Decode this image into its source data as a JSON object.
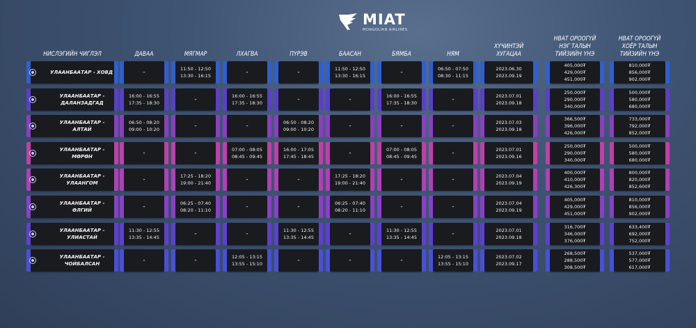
{
  "logo": {
    "name": "MIAT",
    "subtitle": "MONGOLIAN AIRLINES"
  },
  "headers": [
    "НИСЛЭГИЙН ЧИГЛЭЛ",
    "ДАВАА",
    "МЯГМАР",
    "ЛХАГВА",
    "ПҮРЭВ",
    "БААСАН",
    "БЯМБА",
    "НЯМ",
    "ХҮЧИНТЭЙ\nХУГАЦАА",
    "НВАТ ОРООГҮЙ\nНЭГ ТАЛЫН\nТИЙЗИЙН ҮНЭ",
    "НВАТ ОРООГҮЙ\nХОЁР ТАЛЫН\nТИЙЗИЙН ҮНЭ"
  ],
  "rows": [
    {
      "route": "УЛААНБААТАР - ХОВД",
      "accent": "#2f5fd0",
      "cells": [
        "-",
        "11:50 - 12:50\n13:30 - 16:15",
        "-",
        "-",
        "11:50 - 12:50\n13:30 - 16:15",
        "-",
        "06:50 - 07:50\n08:30 - 11:15",
        "2023.06.30\n2023.09.19",
        "405,000₮\n429,000₮\n451,000₮",
        "810,000₮\n856,000₮\n902,000₮"
      ]
    },
    {
      "route": "УЛААНБААТАР - ДАЛАНЗАДГАД",
      "accent": "#5a3fc8",
      "cells": [
        "16:00 - 16:55\n17:35 - 18:30",
        "-",
        "16:00 - 16:55\n17:35 - 18:30",
        "-",
        "-",
        "16:00 - 16:55\n17:35 - 18:30",
        "-",
        "2023.07.01\n2023.09.18",
        "250,000₮\n290,000₮\n340,000₮",
        "500,000₮\n580,000₮\n680,000₮"
      ]
    },
    {
      "route": "УЛААНБААТАР - АЛТАЙ",
      "accent": "#8a3fc0",
      "cells": [
        "06:50 - 08:20\n09:00 - 10:20",
        "-",
        "-",
        "06:50 - 08:20\n09:00 - 10:20",
        "-",
        "-",
        "-",
        "2023.07.03\n2023.09.18",
        "366,500₮\n396,000₮\n426,000₮",
        "733,000₮\n792,000₮\n852,000₮"
      ]
    },
    {
      "route": "УЛААНБААТАР - МӨРӨН",
      "accent": "#c03fa8",
      "cells": [
        "-",
        "-",
        "07:00 - 08:05\n08:45 - 09:45",
        "16:00 - 17:05\n17:45 - 18:45",
        "-",
        "07:00 - 08:05\n08:45 - 09:45",
        "-",
        "2023.07.01\n2023.09.16",
        "250,000₮\n290,000₮\n340,000₮",
        "500,000₮\n580,000₮\n680,000₮"
      ]
    },
    {
      "route": "УЛААНБААТАР - УЛААНГОМ",
      "accent": "#b03fb8",
      "cells": [
        "-",
        "17:25 - 18:20\n19:00 - 21:40",
        "-",
        "-",
        "17:25 - 18:20\n19:00 - 21:40",
        "-",
        "-",
        "2023.07.04\n2023.09.19",
        "400,000₮\n410,000₮\n426,300₮",
        "800,000₮\n820,000₮\n852,600₮"
      ]
    },
    {
      "route": "УЛААНБААТАР - ӨЛГИЙ",
      "accent": "#8a3fc8",
      "cells": [
        "-",
        "06:25 - 07:40\n08:20 - 11:10",
        "-",
        "-",
        "06:25 - 07:40\n08:20 - 11:10",
        "-",
        "-",
        "2023.07.04\n2023.09.19",
        "405,000₮\n429,000₮\n451,000₮",
        "810,000₮\n856,000₮\n902,000₮"
      ]
    },
    {
      "route": "УЛААНБААТАР - УЛИАСТАЙ",
      "accent": "#5f3fd0",
      "cells": [
        "11:30 - 12:55\n13:35 - 14:45",
        "-",
        "-",
        "11:30 - 12:55\n13:35 - 14:45",
        "-",
        "11:30 - 12:55\n13:35 - 14:45",
        "-",
        "2023.07.01\n2023.09.18",
        "316,700₮\n346,000₮\n376,000₮",
        "633,400₮\n692,000₮\n752,000₮"
      ]
    },
    {
      "route": "УЛААНБААТАР - ЧОЙБАЛСАН",
      "accent": "#4a4fd8",
      "cells": [
        "-",
        "-",
        "12:05 - 13:15\n13:55 - 15:10",
        "-",
        "-",
        "-",
        "12:05 - 13:15\n13:55 - 15:10",
        "2023.07.02\n2023.09.17",
        "268,500₮\n288,500₮\n308,500₮",
        "537,000₮\n577,000₮\n617,000₮"
      ]
    }
  ]
}
